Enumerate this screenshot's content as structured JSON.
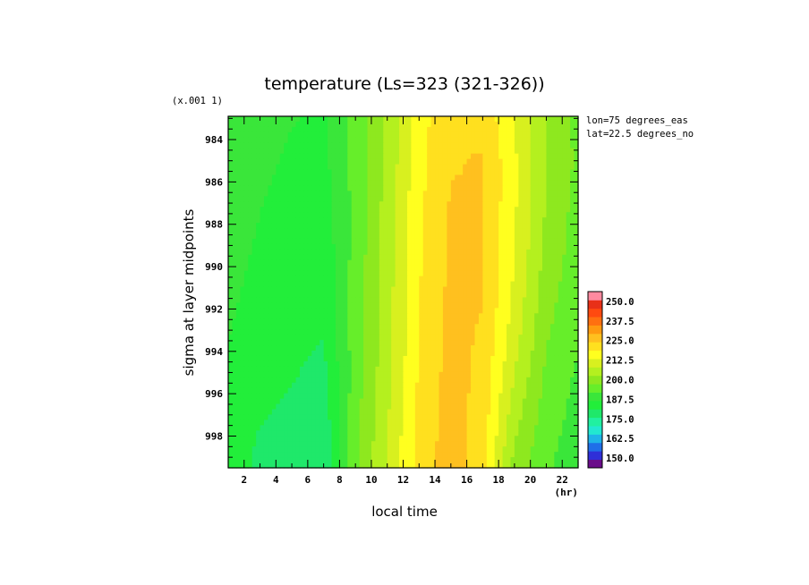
{
  "chart_data": {
    "type": "heatmap",
    "title": "temperature (Ls=323 (321-326))",
    "xlabel": "local time",
    "x_unit": "(hr)",
    "ylabel": "sigma at layer midpoints",
    "y_scale_note": "(x.001 1)",
    "annotations": [
      "lon=75 degrees_eas",
      "lat=22.5 degrees_no"
    ],
    "xlim": [
      1,
      23
    ],
    "ylim": [
      999.5,
      982.9
    ],
    "x_ticks": [
      2,
      4,
      6,
      8,
      10,
      12,
      14,
      16,
      18,
      20,
      22
    ],
    "x_tick_labels": [
      "2",
      "4",
      "6",
      "8",
      "10",
      "12",
      "14",
      "16",
      "18",
      "20",
      "22"
    ],
    "y_ticks": [
      984,
      986,
      988,
      990,
      992,
      994,
      996,
      998
    ],
    "y_tick_labels": [
      "984",
      "986",
      "988",
      "990",
      "992",
      "994",
      "996",
      "998"
    ],
    "x": [
      1,
      3,
      5,
      7,
      9,
      11,
      13,
      15,
      17,
      19,
      21,
      23
    ],
    "y": [
      983,
      985,
      987,
      989,
      991,
      993,
      995,
      997,
      999
    ],
    "z": [
      [
        198,
        196,
        194,
        193,
        202,
        214,
        229,
        236,
        236,
        225,
        212,
        204
      ],
      [
        198,
        195,
        193,
        192,
        202,
        214,
        229,
        237,
        238,
        226,
        213,
        205
      ],
      [
        197,
        194,
        192,
        191,
        202,
        215,
        230,
        238,
        238,
        226,
        212,
        204
      ],
      [
        196,
        193,
        191,
        190,
        202,
        215,
        230,
        238,
        238,
        225,
        211,
        203
      ],
      [
        195,
        192,
        190,
        189,
        203,
        216,
        231,
        239,
        238,
        224,
        209,
        202
      ],
      [
        194,
        191,
        189,
        188,
        203,
        216,
        231,
        239,
        237,
        222,
        207,
        201
      ],
      [
        193,
        190,
        188,
        186,
        203,
        217,
        232,
        240,
        236,
        219,
        205,
        199
      ],
      [
        192,
        188,
        186,
        184,
        204,
        218,
        233,
        240,
        235,
        215,
        203,
        198
      ],
      [
        191,
        186,
        183,
        182,
        205,
        219,
        234,
        241,
        233,
        211,
        201,
        197
      ]
    ],
    "colorbar": {
      "levels_min": 143.75,
      "levels_max": 256.25,
      "step": 6.25,
      "tick_labels": [
        "250.0",
        "237.5",
        "225.0",
        "212.5",
        "200.0",
        "187.5",
        "175.0",
        "162.5",
        "150.0"
      ],
      "tick_values": [
        250,
        237.5,
        225,
        212.5,
        200,
        187.5,
        175,
        162.5,
        150
      ],
      "colors": [
        "#6a0d8a",
        "#2f2fd8",
        "#1f6fe8",
        "#1fb4e8",
        "#22e8d0",
        "#21f0a0",
        "#1fe86a",
        "#22ee3a",
        "#3ae63a",
        "#66ee2a",
        "#8ee81f",
        "#b4f01f",
        "#d8f01f",
        "#ffff1f",
        "#ffe01f",
        "#ffc01f",
        "#ff9a10",
        "#ff7010",
        "#ff4a10",
        "#e83018",
        "#ff8aa0"
      ]
    },
    "grid": false,
    "legend": "right"
  }
}
